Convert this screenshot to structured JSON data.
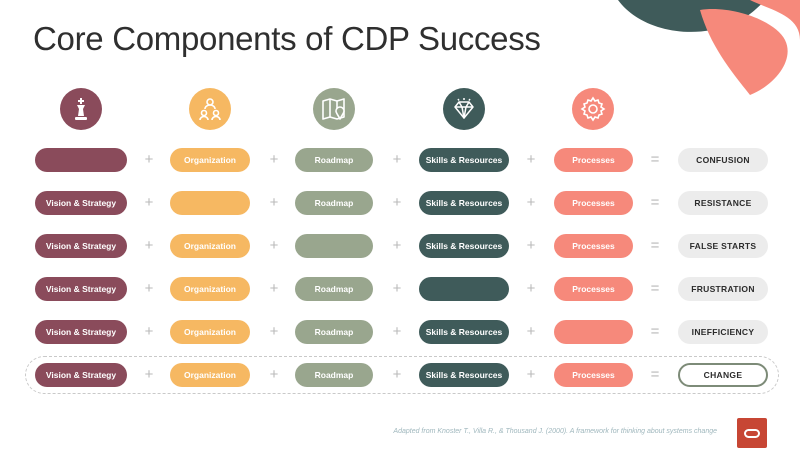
{
  "title": "Core Components of CDP Success",
  "colors": {
    "vision": "#8a4b5b",
    "organization": "#f6b862",
    "roadmap": "#99a68e",
    "skills": "#3f5b5a",
    "processes": "#f6897b",
    "result_bg": "#ececec"
  },
  "icons": [
    "chess-king-icon",
    "team-hierarchy-icon",
    "map-pin-icon",
    "diamond-icon",
    "gear-icon"
  ],
  "operators": {
    "plus": "+",
    "equals": "="
  },
  "rows": [
    {
      "cells": [
        "",
        "Organization",
        "Roadmap",
        "Skills & Resources",
        "Processes"
      ],
      "result": "CONFUSION"
    },
    {
      "cells": [
        "Vision & Strategy",
        "",
        "Roadmap",
        "Skills & Resources",
        "Processes"
      ],
      "result": "RESISTANCE"
    },
    {
      "cells": [
        "Vision & Strategy",
        "Organization",
        "",
        "Skills & Resources",
        "Processes"
      ],
      "result": "FALSE STARTS"
    },
    {
      "cells": [
        "Vision & Strategy",
        "Organization",
        "Roadmap",
        "",
        "Processes"
      ],
      "result": "FRUSTRATION"
    },
    {
      "cells": [
        "Vision & Strategy",
        "Organization",
        "Roadmap",
        "Skills & Resources",
        ""
      ],
      "result": "INEFFICIENCY"
    },
    {
      "cells": [
        "Vision & Strategy",
        "Organization",
        "Roadmap",
        "Skills & Resources",
        "Processes"
      ],
      "result": "CHANGE"
    }
  ],
  "citation": "Adapted from Knoster T., Villa R., & Thousand J. (2000). A framework for thinking about systems change"
}
